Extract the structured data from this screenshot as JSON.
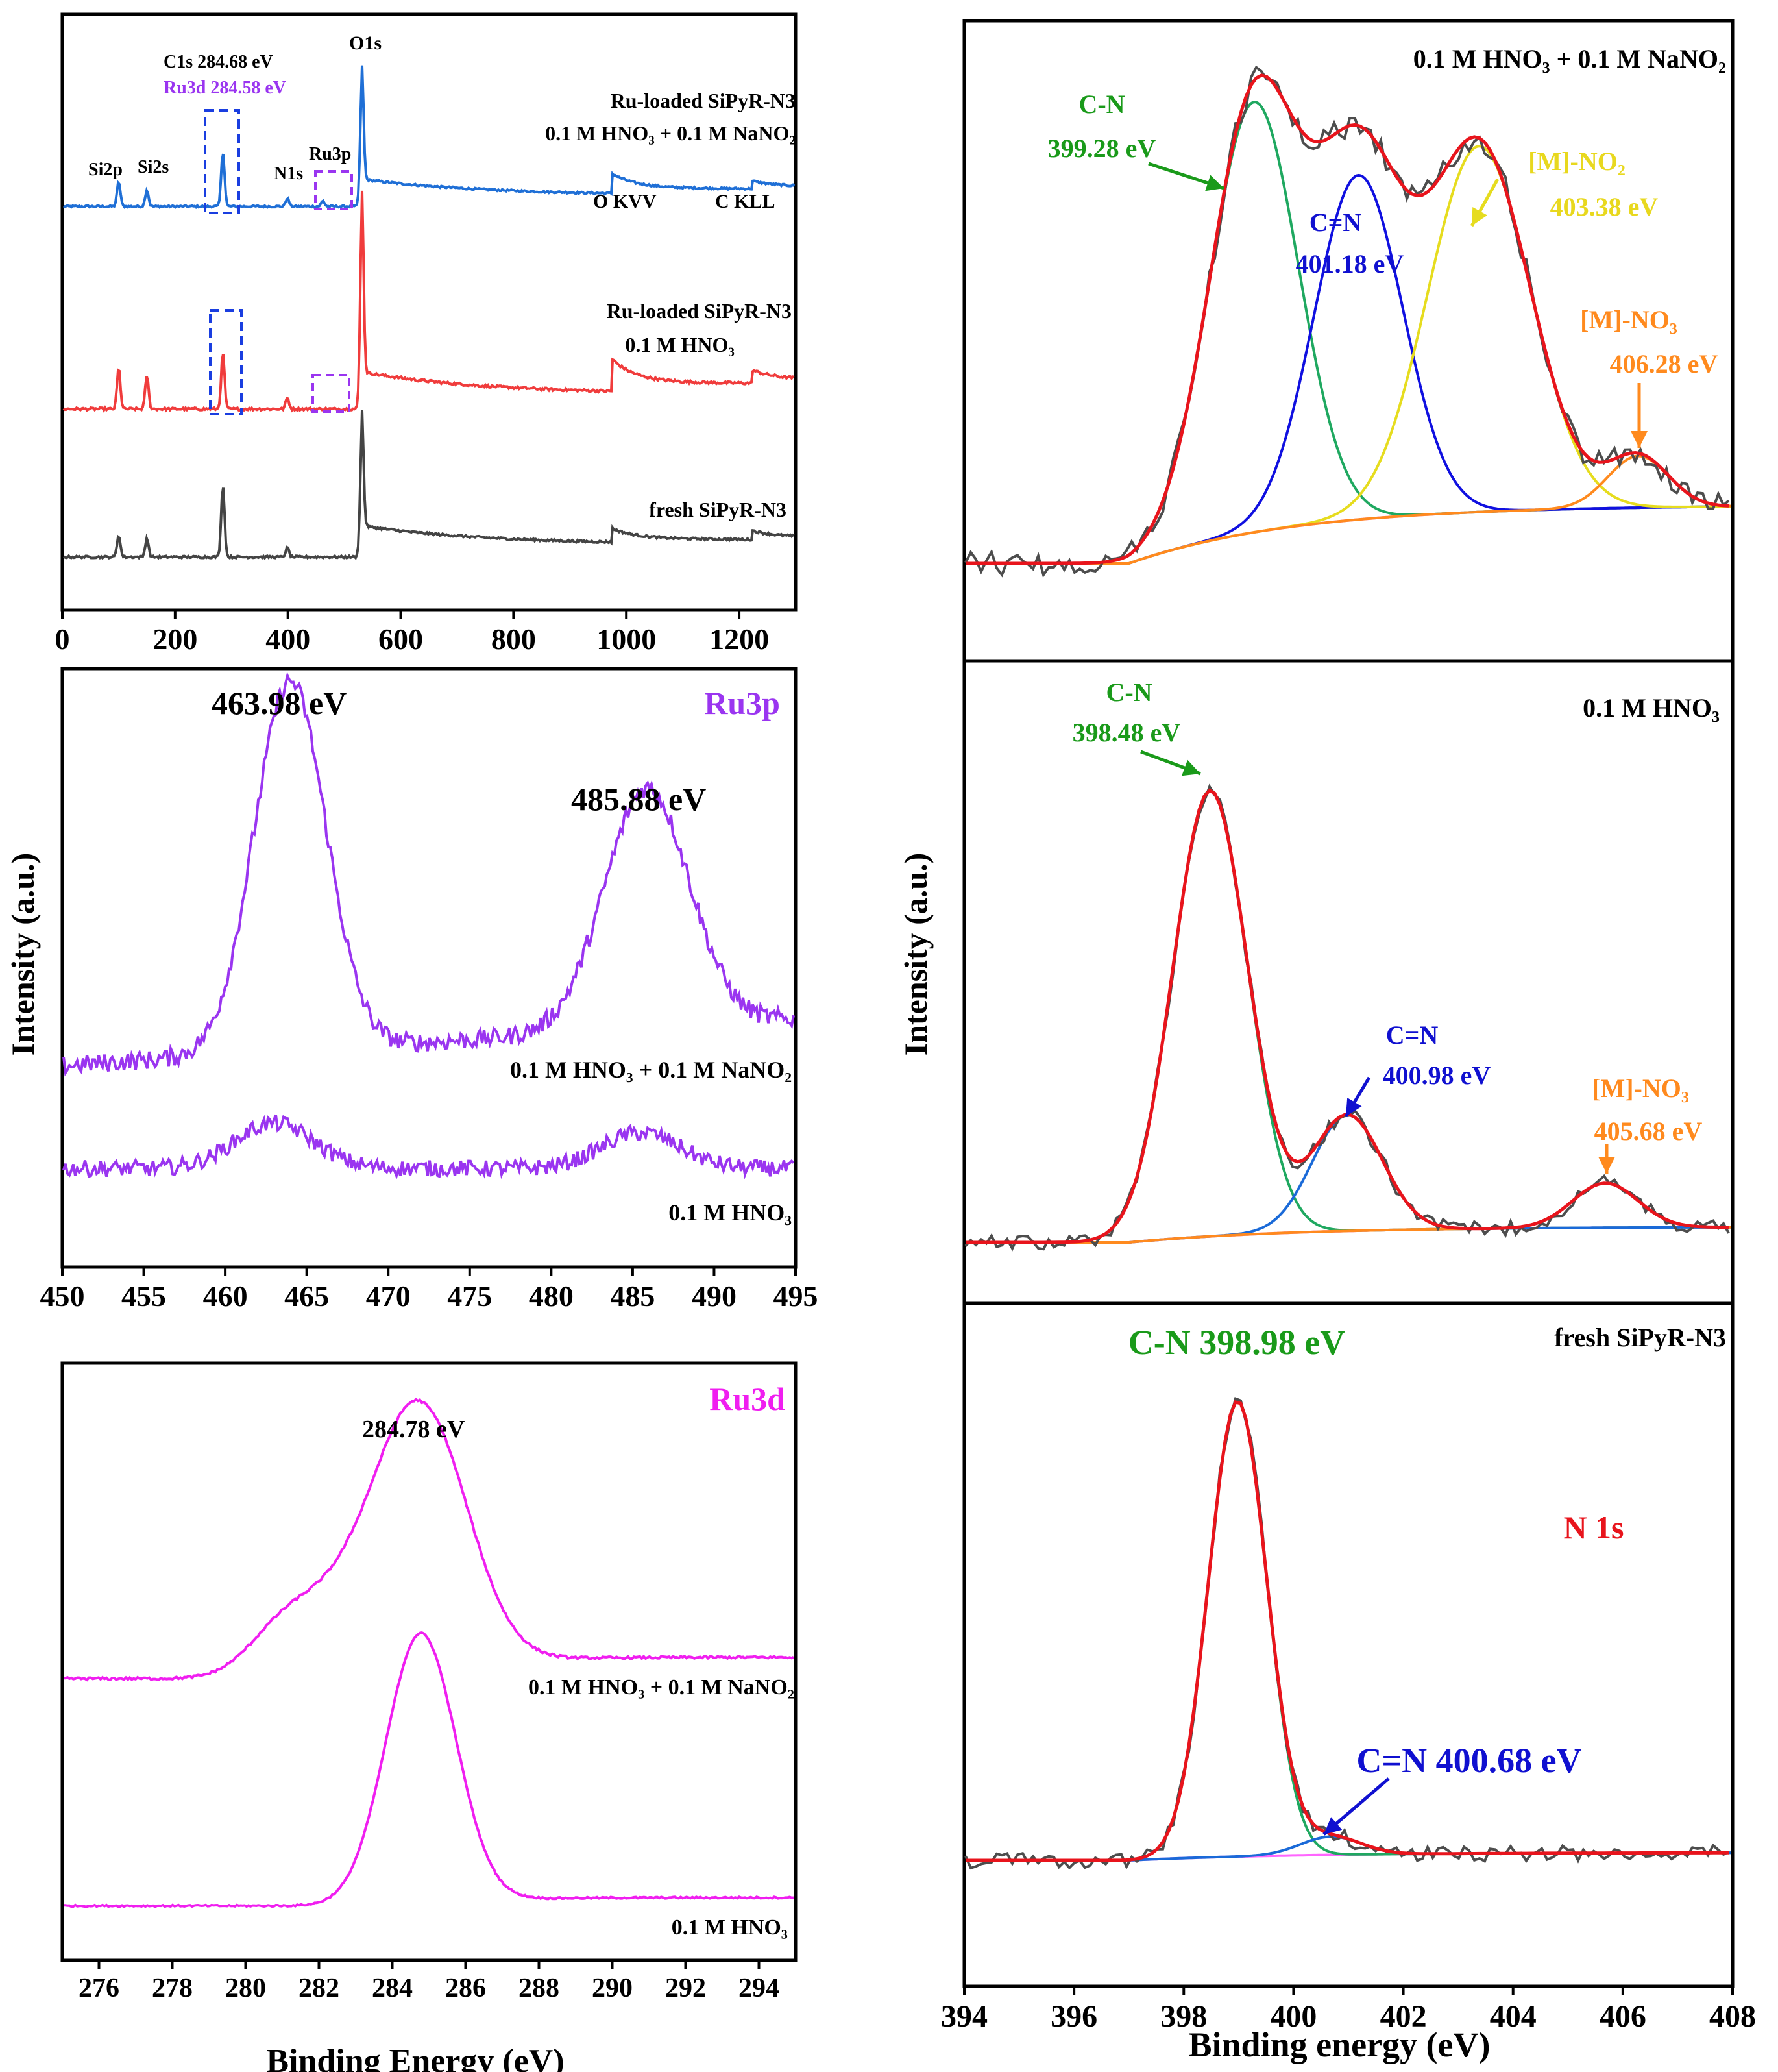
{
  "figure": {
    "shared_ylabel_left": "Intensity (a.u.)",
    "shared_ylabel_right": "Intensity (a.u.)",
    "colors": {
      "survey_top": "#1f6fd6",
      "survey_mid": "#f03c3c",
      "survey_bottom": "#444444",
      "ru3p": "#9a35f0",
      "ru3d": "#f01ef0",
      "raw": "#4d4d4d",
      "envelope": "#e8141c",
      "cn": "#1fa860",
      "cdn": "#1010e0",
      "no2": "#e6dc1e",
      "no3": "#ff8a1e",
      "baseline": "#ff66ff",
      "cn_label": "#1a9a1a",
      "cdn_label": "#1010d0",
      "no2_label": "#e8d81e",
      "no3_label": "#ff8a1e"
    }
  },
  "chart_data": [
    {
      "id": "survey",
      "type": "line",
      "title": "",
      "xlabel": "",
      "ylabel": "",
      "xlim": [
        0,
        1300
      ],
      "xticks": [
        0,
        200,
        400,
        600,
        800,
        1000,
        1200
      ],
      "series": [
        {
          "name": "Ru-loaded SiPyR-N3 0.1 M HNO3 + 0.1 M NaNO2",
          "label_line1": "Ru-loaded SiPyR-N3",
          "label_line2": "0.1 M HNO₃ + 0.1 M NaNO₂",
          "peaks": [
            [
              100,
              18
            ],
            [
              150,
              12
            ],
            [
              284.7,
              40
            ],
            [
              399,
              6
            ],
            [
              462,
              4
            ],
            [
              531,
              85
            ],
            [
              975,
              10
            ],
            [
              1222,
              4
            ]
          ]
        },
        {
          "name": "Ru-loaded SiPyR-N3 0.1 M HNO3",
          "label_line1": "Ru-loaded SiPyR-N3",
          "label_line2": "0.1 M HNO₃",
          "peaks": [
            [
              100,
              22
            ],
            [
              150,
              18
            ],
            [
              284.7,
              30
            ],
            [
              399,
              6
            ],
            [
              531,
              100
            ],
            [
              975,
              12
            ],
            [
              1222,
              5
            ]
          ]
        },
        {
          "name": "fresh SiPyR-N3",
          "label_line1": "fresh SiPyR-N3",
          "peaks": [
            [
              100,
              14
            ],
            [
              150,
              12
            ],
            [
              284.7,
              46
            ],
            [
              399,
              6
            ],
            [
              531,
              75
            ],
            [
              975,
              6
            ],
            [
              1222,
              4
            ]
          ]
        }
      ],
      "annotations": {
        "O1s": "O1s",
        "C1s": "C1s 284.68 eV",
        "Ru3d": "Ru3d 284.58 eV",
        "Si2p": "Si2p",
        "Si2s": "Si2s",
        "N1s": "N1s",
        "Ru3p": "Ru3p",
        "OKVV": "O KVV",
        "CKLL": "C KLL"
      }
    },
    {
      "id": "ru3p",
      "type": "line",
      "title": "Ru3p",
      "xlabel": "",
      "ylabel": "",
      "xlim": [
        450,
        495
      ],
      "xticks": [
        450,
        455,
        460,
        465,
        470,
        475,
        480,
        485,
        490,
        495
      ],
      "series": [
        {
          "name": "0.1 M HNO3 + 0.1 M NaNO2",
          "label": "0.1 M HNO₃ + 0.1 M NaNO₂",
          "peaks": [
            [
              463.98,
              100,
              2.2
            ],
            [
              485.88,
              65,
              2.6
            ]
          ]
        },
        {
          "name": "0.1 M HNO3",
          "label": "0.1 M HNO₃",
          "peaks": [
            [
              463.0,
              14,
              2.4
            ],
            [
              485.5,
              11,
              2.4
            ]
          ]
        }
      ],
      "peak_labels": [
        "463.98 eV",
        "485.88 eV"
      ]
    },
    {
      "id": "ru3d",
      "type": "line",
      "title": "Ru3d",
      "xlabel": "Binding Energy (eV)",
      "ylabel": "",
      "xlim": [
        275,
        295
      ],
      "xticks": [
        276,
        278,
        280,
        282,
        284,
        286,
        288,
        290,
        292,
        294
      ],
      "series": [
        {
          "name": "0.1 M HNO3 + 0.1 M NaNO2",
          "label": "0.1 M HNO₃ + 0.1 M NaNO₂",
          "peaks": [
            [
              284.78,
              62,
              1.25
            ],
            [
              282.4,
              15,
              1.3
            ],
            [
              280.9,
              7,
              0.9
            ]
          ]
        },
        {
          "name": "0.1 M HNO3",
          "label": "0.1 M HNO₃",
          "peaks": [
            [
              284.78,
              100,
              0.95
            ]
          ]
        }
      ],
      "peak_labels": [
        "284.78 eV"
      ]
    },
    {
      "id": "n1s_nitrite",
      "type": "line",
      "title": "0.1 M HNO₃ + 0.1 M NaNO₂",
      "xlabel": "",
      "ylabel": "",
      "xlim": [
        394,
        408
      ],
      "components": [
        {
          "name": "C-N",
          "center": 399.28,
          "label_line1": "C-N",
          "label_line2": "399.28 eV",
          "height": 100,
          "fwhm": 1.9
        },
        {
          "name": "C=N",
          "center": 401.18,
          "label_line1": "C=N",
          "label_line2": "401.18 eV",
          "height": 80,
          "fwhm": 1.9
        },
        {
          "name": "[M]-NO2",
          "center": 403.38,
          "label_line1": "[M]-NO₂",
          "label_line2": "403.38 eV",
          "height": 85,
          "fwhm": 2.2
        },
        {
          "name": "[M]-NO3",
          "center": 406.28,
          "label_line1": "[M]-NO₃",
          "label_line2": "406.28 eV",
          "height": 12,
          "fwhm": 1.3
        }
      ]
    },
    {
      "id": "n1s_hno3",
      "type": "line",
      "title": "0.1 M HNO₃",
      "xlabel": "",
      "ylabel": "",
      "xlim": [
        394,
        408
      ],
      "components": [
        {
          "name": "C-N",
          "center": 398.48,
          "label_line1": "C-N",
          "label_line2": "398.48 eV",
          "height": 100,
          "fwhm": 1.6
        },
        {
          "name": "C=N",
          "center": 400.98,
          "label_line1": "C=N",
          "label_line2": "400.98 eV",
          "height": 26,
          "fwhm": 1.5
        },
        {
          "name": "[M]-NO3",
          "center": 405.68,
          "label_line1": "[M]-NO₃",
          "label_line2": "405.68 eV",
          "height": 10,
          "fwhm": 1.4
        }
      ]
    },
    {
      "id": "n1s_fresh",
      "type": "line",
      "title": "fresh SiPyR-N3",
      "subtitle": "N 1s",
      "xlabel": "Binding energy (eV)",
      "ylabel": "",
      "xlim": [
        394,
        408
      ],
      "xticks": [
        394,
        396,
        398,
        400,
        402,
        404,
        406,
        408
      ],
      "components": [
        {
          "name": "C-N",
          "center": 398.98,
          "label": "C-N 398.98 eV",
          "height": 100,
          "fwhm": 1.25
        },
        {
          "name": "C=N",
          "center": 400.68,
          "label": "C=N 400.68 eV",
          "height": 4,
          "fwhm": 1.3
        }
      ]
    }
  ]
}
